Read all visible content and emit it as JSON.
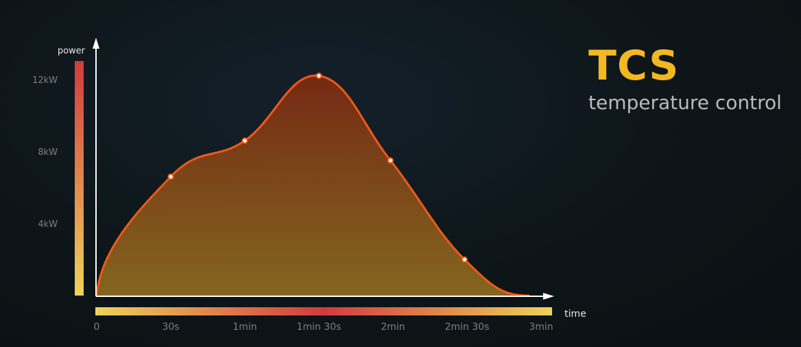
{
  "brand": {
    "title": "TCS",
    "subtitle": "temperature control"
  },
  "colors": {
    "background": "#0d1518",
    "curve": "#ef5a17",
    "fill_top": "#7a2a12",
    "fill_bottom": "#8a6a20",
    "brand_accent": "#f2b821",
    "axis_text": "#7b8083",
    "axis_line": "#ffffff",
    "gradient_yellow": "#eed25a",
    "gradient_red": "#d23a3e"
  },
  "chart_data": {
    "type": "area",
    "xlabel": "time",
    "ylabel": "power",
    "x_tick_labels": [
      "0",
      "30s",
      "1min",
      "1min 30s",
      "2min",
      "2min 30s",
      "3min"
    ],
    "y_tick_labels": [
      "4kW",
      "8kW",
      "12kW"
    ],
    "xlim": [
      0,
      180
    ],
    "ylim": [
      0,
      13.4
    ],
    "x_unit": "s",
    "y_unit": "kW",
    "marked_points": [
      {
        "x": 30,
        "y": 6.6
      },
      {
        "x": 60,
        "y": 8.6
      },
      {
        "x": 90,
        "y": 12.2
      },
      {
        "x": 119,
        "y": 7.5
      },
      {
        "x": 149,
        "y": 2.0
      }
    ],
    "curve_start": {
      "x": 0,
      "y": 0
    },
    "curve_end": {
      "x": 175,
      "y": 0
    },
    "grid": false,
    "legend": "none"
  }
}
